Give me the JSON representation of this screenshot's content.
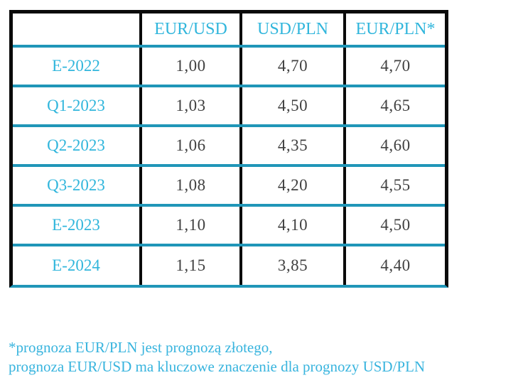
{
  "table": {
    "headers": [
      "",
      "EUR/USD",
      "USD/PLN",
      "EUR/PLN*"
    ],
    "rows": [
      {
        "label": "E-2022",
        "values": [
          "1,00",
          "4,70",
          "4,70"
        ]
      },
      {
        "label": "Q1-2023",
        "values": [
          "1,03",
          "4,50",
          "4,65"
        ]
      },
      {
        "label": "Q2-2023",
        "values": [
          "1,06",
          "4,35",
          "4,60"
        ]
      },
      {
        "label": "Q3-2023",
        "values": [
          "1,08",
          "4,20",
          "4,55"
        ]
      },
      {
        "label": "E-2023",
        "values": [
          "1,10",
          "4,10",
          "4,50"
        ]
      },
      {
        "label": "E-2024",
        "values": [
          "1,15",
          "3,85",
          "4,40"
        ]
      }
    ]
  },
  "footnote": {
    "line1": "*prognoza EUR/PLN jest prognozą złotego,",
    "line2": "prognoza EUR/USD ma kluczowe znaczenie dla prognozy USD/PLN"
  },
  "colors": {
    "accent_text": "#31b6dc",
    "divider_teal": "#2096b8",
    "border_black": "#0a0a0a",
    "value_text": "#404040",
    "footnote_text": "#38b4de"
  },
  "chart_data": {
    "type": "table",
    "title": "",
    "columns": [
      "",
      "EUR/USD",
      "USD/PLN",
      "EUR/PLN*"
    ],
    "rows": [
      [
        "E-2022",
        "1,00",
        "4,70",
        "4,70"
      ],
      [
        "Q1-2023",
        "1,03",
        "4,50",
        "4,65"
      ],
      [
        "Q2-2023",
        "1,06",
        "4,35",
        "4,60"
      ],
      [
        "Q3-2023",
        "1,08",
        "4,20",
        "4,55"
      ],
      [
        "E-2023",
        "1,10",
        "4,10",
        "4,50"
      ],
      [
        "E-2024",
        "1,15",
        "3,85",
        "4,40"
      ]
    ],
    "annotations": [
      "*prognoza EUR/PLN jest prognozą złotego,",
      "prognoza EUR/USD ma kluczowe znaczenie dla prognozy USD/PLN"
    ]
  }
}
